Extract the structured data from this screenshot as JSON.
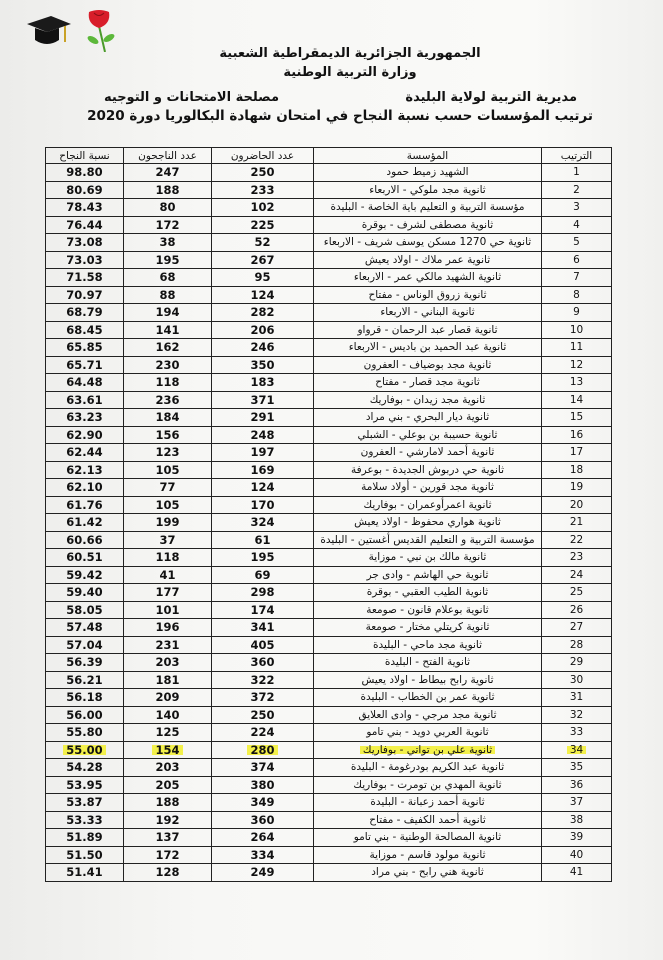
{
  "header": {
    "line1": "الجمهورية الجزائرية الديمقراطية الشعبية",
    "line2": "وزارة التربية الوطنية",
    "directorate": "مديرية التربية لولاية البليدة",
    "service": "مصلحة الامتحانات و التوجيه",
    "title": "ترتيب المؤسسات حسب نسبة النجاح في امتحان شهادة البكالوريا دورة 2020"
  },
  "decorations": [
    "graduation-cap-icon",
    "rose-icon"
  ],
  "highlight_color": "#f3f04a",
  "table": {
    "columns": [
      "الترتيب",
      "المؤسسة",
      "عدد الحاضرون",
      "عدد الناجحون",
      "نسبة النجاح"
    ],
    "highlighted_rank": 34,
    "rows": [
      [
        "1",
        "الشهيد زميط حمود",
        "250",
        "247",
        "98.80"
      ],
      [
        "2",
        "ثانوية مجد ملوكي - الاربعاء",
        "233",
        "188",
        "80.69"
      ],
      [
        "3",
        "مؤسسة التربية و التعليم باية الخاصة - البليدة",
        "102",
        "80",
        "78.43"
      ],
      [
        "4",
        "ثانوية مصطفى لشرف - بوقرة",
        "225",
        "172",
        "76.44"
      ],
      [
        "5",
        "ثانوية حي 1270 مسكن يوسف شريف - الاربعاء",
        "52",
        "38",
        "73.08"
      ],
      [
        "6",
        "ثانوية عمر ملاك - اولاد يعيش",
        "267",
        "195",
        "73.03"
      ],
      [
        "7",
        "ثانوية الشهيد مالكي عمر - الاربعاء",
        "95",
        "68",
        "71.58"
      ],
      [
        "8",
        "ثانوية زروق الوناس - مفتاح",
        "124",
        "88",
        "70.97"
      ],
      [
        "9",
        "ثانوية البناني - الاربعاء",
        "282",
        "194",
        "68.79"
      ],
      [
        "10",
        "ثانوية قصار عبد الرحمان - قرواو",
        "206",
        "141",
        "68.45"
      ],
      [
        "11",
        "ثانوية عبد الحميد بن باديس - الاربعاء",
        "246",
        "162",
        "65.85"
      ],
      [
        "12",
        "ثانوية مجد بوضياف - العفرون",
        "350",
        "230",
        "65.71"
      ],
      [
        "13",
        "ثانوية مجد قصار - مفتاح",
        "183",
        "118",
        "64.48"
      ],
      [
        "14",
        "ثانوية مجد زيدان - بوفاريك",
        "371",
        "236",
        "63.61"
      ],
      [
        "15",
        "ثانوية ديار البحري - بني مراد",
        "291",
        "184",
        "63.23"
      ],
      [
        "16",
        "ثانوية حسيبة بن بوعلي - الشبلي",
        "248",
        "156",
        "62.90"
      ],
      [
        "17",
        "ثانوية أحمد لامارشي - العفرون",
        "197",
        "123",
        "62.44"
      ],
      [
        "18",
        "ثانوية حي دربوش الجديدة - بوعرفة",
        "169",
        "105",
        "62.13"
      ],
      [
        "19",
        "ثانوية مجد قورين - أولاد سلامة",
        "124",
        "77",
        "62.10"
      ],
      [
        "20",
        "ثانوية اعمرأوعمران - بوفاريك",
        "170",
        "105",
        "61.76"
      ],
      [
        "21",
        "ثانوية هواري محفوظ - اولاد يعيش",
        "324",
        "199",
        "61.42"
      ],
      [
        "22",
        "مؤسسة التربية و التعليم القديس أغستين - البليدة",
        "61",
        "37",
        "60.66"
      ],
      [
        "23",
        "ثانوية مالك بن نبي - موزاية",
        "195",
        "118",
        "60.51"
      ],
      [
        "24",
        "ثانوية حي الهاشم - وادى جر",
        "69",
        "41",
        "59.42"
      ],
      [
        "25",
        "ثانوية الطيب العقبي - بوقرة",
        "298",
        "177",
        "59.40"
      ],
      [
        "26",
        "ثانوية بوعلام قانون - صومعة",
        "174",
        "101",
        "58.05"
      ],
      [
        "27",
        "ثانوية كريتلي مختار - صومعة",
        "341",
        "196",
        "57.48"
      ],
      [
        "28",
        "ثانوية مجد ماحي - البليدة",
        "405",
        "231",
        "57.04"
      ],
      [
        "29",
        "ثانوية الفتح - البليدة",
        "360",
        "203",
        "56.39"
      ],
      [
        "30",
        "ثانوية رابح بيطاط - اولاد يعيش",
        "322",
        "181",
        "56.21"
      ],
      [
        "31",
        "ثانوية عمر بن الخطاب - البليدة",
        "372",
        "209",
        "56.18"
      ],
      [
        "32",
        "ثانوية مجد مرجي - وادى العلايق",
        "250",
        "140",
        "56.00"
      ],
      [
        "33",
        "ثانوية العربي دويد - بني تامو",
        "224",
        "125",
        "55.80"
      ],
      [
        "34",
        "ثانوية علي بن تواتي - بوفاريك",
        "280",
        "154",
        "55.00"
      ],
      [
        "35",
        "ثانوية عبد الكريم بودرغومة - البليدة",
        "374",
        "203",
        "54.28"
      ],
      [
        "36",
        "ثانوية المهدي بن تومرت - بوفاريك",
        "380",
        "205",
        "53.95"
      ],
      [
        "37",
        "ثانوية أحمد زعبانة - البليدة",
        "349",
        "188",
        "53.87"
      ],
      [
        "38",
        "ثانوية أحمد الكفيف - مفتاح",
        "360",
        "192",
        "53.33"
      ],
      [
        "39",
        "ثانوية المصالحة الوطنية - بني تامو",
        "264",
        "137",
        "51.89"
      ],
      [
        "40",
        "ثانوية مولود قاسم - موزاية",
        "334",
        "172",
        "51.50"
      ],
      [
        "41",
        "ثانوية هني رابح - بني مراد",
        "249",
        "128",
        "51.41"
      ]
    ]
  }
}
